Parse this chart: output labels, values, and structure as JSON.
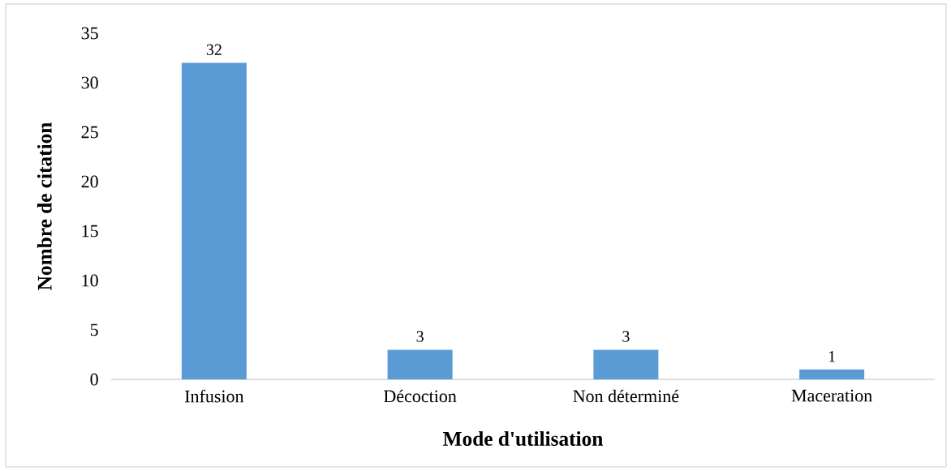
{
  "chart_data": {
    "type": "bar",
    "xlabel": "Mode d'utilisation",
    "ylabel": "Nombre de citation",
    "categories": [
      "Infusion",
      "Décoction",
      "Non déterminé",
      "Maceration"
    ],
    "values": [
      32,
      3,
      3,
      1
    ],
    "color": "#5b9bd5",
    "data_labels": true,
    "ylim": [
      0,
      35
    ],
    "yticks": [
      0,
      5,
      10,
      15,
      20,
      25,
      30,
      35
    ]
  }
}
